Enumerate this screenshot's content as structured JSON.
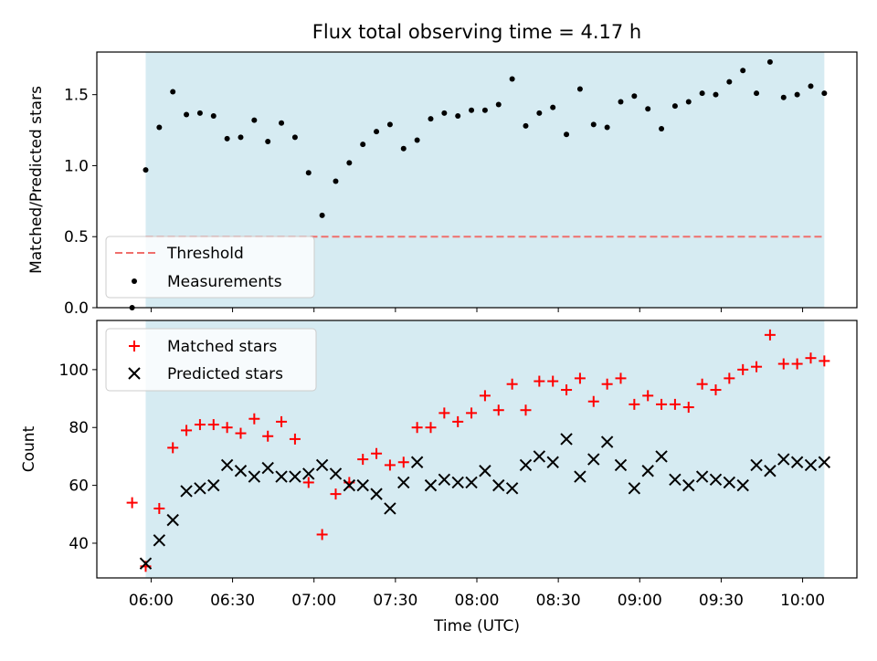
{
  "colors": {
    "shade": "#add8e6",
    "threshold": "#ef6f6c",
    "measurements": "#000000",
    "matched": "#ff0000",
    "predicted": "#000000"
  },
  "chart_data": [
    {
      "type": "scatter",
      "title": "Flux total observing time = 4.17 h",
      "xlabel": "",
      "ylabel": "Matched/Predicted stars",
      "x_unit": "HH:MM UTC",
      "xlim": [
        "05:40",
        "10:20"
      ],
      "ylim": [
        0,
        1.8
      ],
      "yticks": [
        0,
        0.5,
        1.0,
        1.5
      ],
      "ytick_labels": [
        "0.0",
        "0.5",
        "1.0",
        "1.5"
      ],
      "shaded_interval": [
        "05:58",
        "10:08"
      ],
      "legend_position": "lower left",
      "grid": false,
      "series": [
        {
          "name": "Threshold",
          "style": "dashed-line",
          "x": [
            "05:58",
            "10:08"
          ],
          "y": [
            0.5,
            0.5
          ]
        },
        {
          "name": "Measurements",
          "style": "dot",
          "x": [
            "05:53",
            "05:58",
            "06:03",
            "06:08",
            "06:13",
            "06:18",
            "06:23",
            "06:28",
            "06:33",
            "06:38",
            "06:43",
            "06:48",
            "06:53",
            "06:58",
            "07:03",
            "07:08",
            "07:13",
            "07:18",
            "07:23",
            "07:28",
            "07:33",
            "07:38",
            "07:43",
            "07:48",
            "07:53",
            "07:58",
            "08:03",
            "08:08",
            "08:13",
            "08:18",
            "08:23",
            "08:28",
            "08:33",
            "08:38",
            "08:43",
            "08:48",
            "08:53",
            "08:58",
            "09:03",
            "09:08",
            "09:13",
            "09:18",
            "09:23",
            "09:28",
            "09:33",
            "09:38",
            "09:43",
            "09:48",
            "09:53",
            "09:58",
            "10:03",
            "10:08"
          ],
          "y": [
            0.0,
            0.97,
            1.27,
            1.52,
            1.36,
            1.37,
            1.35,
            1.19,
            1.2,
            1.32,
            1.17,
            1.3,
            1.2,
            0.95,
            0.65,
            0.89,
            1.02,
            1.15,
            1.24,
            1.29,
            1.12,
            1.18,
            1.33,
            1.37,
            1.35,
            1.39,
            1.39,
            1.43,
            1.61,
            1.28,
            1.37,
            1.41,
            1.22,
            1.54,
            1.29,
            1.27,
            1.45,
            1.49,
            1.4,
            1.26,
            1.42,
            1.45,
            1.51,
            1.5,
            1.59,
            1.67,
            1.51,
            1.73,
            1.48,
            1.5,
            1.56,
            1.51
          ]
        }
      ]
    },
    {
      "type": "scatter",
      "title": "",
      "xlabel": "Time (UTC)",
      "ylabel": "Count",
      "x_unit": "HH:MM UTC",
      "xlim": [
        "05:40",
        "10:20"
      ],
      "xticks": [
        "06:00",
        "06:30",
        "07:00",
        "07:30",
        "08:00",
        "08:30",
        "09:00",
        "09:30",
        "10:00"
      ],
      "ylim": [
        28,
        117
      ],
      "yticks": [
        40,
        60,
        80,
        100
      ],
      "ytick_labels": [
        "40",
        "60",
        "80",
        "100"
      ],
      "shaded_interval": [
        "05:58",
        "10:08"
      ],
      "legend_position": "upper left",
      "grid": false,
      "series": [
        {
          "name": "Matched stars",
          "marker": "+",
          "x": [
            "05:53",
            "05:58",
            "06:03",
            "06:08",
            "06:13",
            "06:18",
            "06:23",
            "06:28",
            "06:33",
            "06:38",
            "06:43",
            "06:48",
            "06:53",
            "06:58",
            "07:03",
            "07:08",
            "07:13",
            "07:18",
            "07:23",
            "07:28",
            "07:33",
            "07:38",
            "07:43",
            "07:48",
            "07:53",
            "07:58",
            "08:03",
            "08:08",
            "08:13",
            "08:18",
            "08:23",
            "08:28",
            "08:33",
            "08:38",
            "08:43",
            "08:48",
            "08:53",
            "08:58",
            "09:03",
            "09:08",
            "09:13",
            "09:18",
            "09:23",
            "09:28",
            "09:33",
            "09:38",
            "09:43",
            "09:48",
            "09:53",
            "09:58",
            "10:03",
            "10:08"
          ],
          "y": [
            54,
            32,
            52,
            73,
            79,
            81,
            81,
            80,
            78,
            83,
            77,
            82,
            76,
            61,
            43,
            57,
            61,
            69,
            71,
            67,
            68,
            80,
            80,
            85,
            82,
            85,
            91,
            86,
            95,
            86,
            96,
            96,
            93,
            97,
            89,
            95,
            97,
            88,
            91,
            88,
            88,
            87,
            95,
            93,
            97,
            100,
            101,
            112,
            102,
            102,
            104,
            103
          ]
        },
        {
          "name": "Predicted stars",
          "marker": "x",
          "x": [
            "05:58",
            "06:03",
            "06:08",
            "06:13",
            "06:18",
            "06:23",
            "06:28",
            "06:33",
            "06:38",
            "06:43",
            "06:48",
            "06:53",
            "06:58",
            "07:03",
            "07:08",
            "07:13",
            "07:18",
            "07:23",
            "07:28",
            "07:33",
            "07:38",
            "07:43",
            "07:48",
            "07:53",
            "07:58",
            "08:03",
            "08:08",
            "08:13",
            "08:18",
            "08:23",
            "08:28",
            "08:33",
            "08:38",
            "08:43",
            "08:48",
            "08:53",
            "08:58",
            "09:03",
            "09:08",
            "09:13",
            "09:18",
            "09:23",
            "09:28",
            "09:33",
            "09:38",
            "09:43",
            "09:48",
            "09:53",
            "09:58",
            "10:03",
            "10:08"
          ],
          "y": [
            33,
            41,
            48,
            58,
            59,
            60,
            67,
            65,
            63,
            66,
            63,
            63,
            64,
            67,
            64,
            60,
            60,
            57,
            52,
            61,
            68,
            60,
            62,
            61,
            61,
            65,
            60,
            59,
            67,
            70,
            68,
            76,
            63,
            69,
            75,
            67,
            59,
            65,
            70,
            62,
            60,
            63,
            62,
            61,
            60,
            67,
            65,
            69,
            68,
            67,
            68
          ]
        }
      ]
    }
  ]
}
